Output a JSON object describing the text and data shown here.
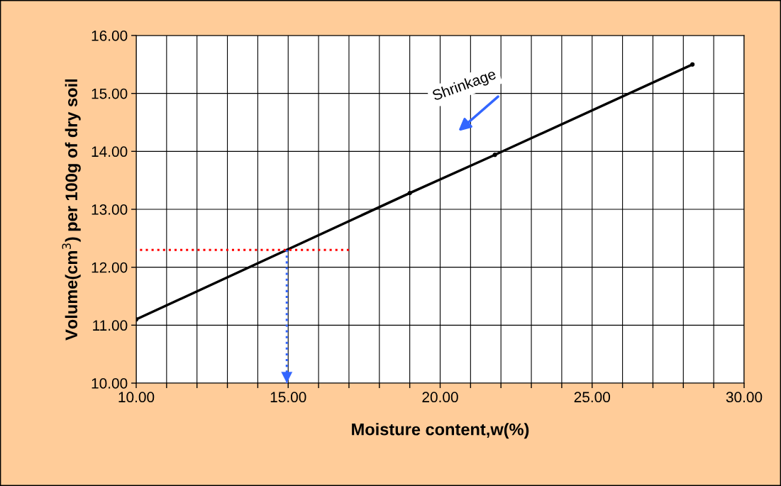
{
  "chart_data": {
    "type": "line",
    "xlabel": "Moisture content,w(%)",
    "ylabel": "Volume(cm$^{3}$) per 100g of dry soil",
    "series": [
      {
        "color": "#000000",
        "x": [
          10.0,
          19.0,
          21.8,
          28.3
        ],
        "values": [
          11.1,
          13.28,
          13.94,
          15.5
        ],
        "marker": "circle",
        "line_style": "solid"
      },
      {
        "color": "#ff0000",
        "x": [
          10.0,
          17.0
        ],
        "values": [
          12.3,
          12.3
        ],
        "marker": "none",
        "line_style": "dotted"
      }
    ],
    "annotations": [
      "Shrinkage"
    ],
    "xlim": [
      10,
      30
    ],
    "ylim": [
      10,
      16
    ],
    "xticks": [
      {
        "value": 10,
        "label": "10.00"
      },
      {
        "value": 11,
        "label": null
      },
      {
        "value": 12,
        "label": null
      },
      {
        "value": 13,
        "label": null
      },
      {
        "value": 14,
        "label": null
      },
      {
        "value": 15,
        "label": "15.00"
      },
      {
        "value": 16,
        "label": null
      },
      {
        "value": 17,
        "label": null
      },
      {
        "value": 18,
        "label": null
      },
      {
        "value": 19,
        "label": null
      },
      {
        "value": 20,
        "label": "20.00"
      },
      {
        "value": 21,
        "label": null
      },
      {
        "value": 22,
        "label": null
      },
      {
        "value": 23,
        "label": null
      },
      {
        "value": 24,
        "label": null
      },
      {
        "value": 25,
        "label": "25.00"
      },
      {
        "value": 26,
        "label": null
      },
      {
        "value": 27,
        "label": null
      },
      {
        "value": 28,
        "label": null
      },
      {
        "value": 29,
        "label": null
      },
      {
        "value": 30,
        "label": "30.00"
      }
    ],
    "yticks": [
      {
        "value": 10,
        "label": "10.00"
      },
      {
        "value": 11,
        "label": "11.00"
      },
      {
        "value": 12,
        "label": "12.00"
      },
      {
        "value": 13,
        "label": "13.00"
      },
      {
        "value": 14,
        "label": "14.00"
      },
      {
        "value": 15,
        "label": "15.00"
      },
      {
        "value": 16,
        "label": "16.00"
      }
    ],
    "grid": true,
    "legend": false
  }
}
